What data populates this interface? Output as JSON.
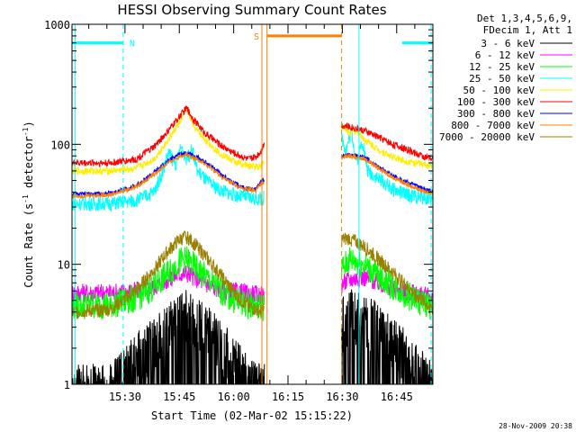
{
  "chart_data": {
    "type": "line",
    "title": "HESSI Observing Summary Count Rates",
    "xlabel": "Start Time (02-Mar-02 15:15:22)",
    "ylabel": "Count Rate (s⁻¹ detector⁻¹)",
    "ylabel_parts": [
      "Count Rate (s",
      "-1",
      " detector",
      "-1",
      ")"
    ],
    "y_scale": "log",
    "ylim": [
      1,
      1000
    ],
    "xlim_minutes": [
      15.37,
      115.0
    ],
    "x_ticks": [
      {
        "label": "15:30",
        "minutes": 30
      },
      {
        "label": "15:45",
        "minutes": 45
      },
      {
        "label": "16:00",
        "minutes": 60
      },
      {
        "label": "16:15",
        "minutes": 75
      },
      {
        "label": "16:30",
        "minutes": 90
      },
      {
        "label": "16:45",
        "minutes": 105
      }
    ],
    "y_ticks": [
      {
        "label": "1",
        "value": 1
      },
      {
        "label": "10",
        "value": 10
      },
      {
        "label": "100",
        "value": 100
      },
      {
        "label": "1000",
        "value": 1000
      }
    ],
    "legend_header": [
      "Det 1,3,4,5,6,9,",
      "FDecim 1, Att 1"
    ],
    "legend_position": "right",
    "timestamp": "28-Nov-2009 20:38",
    "data_gap_minutes": [
      68.5,
      89.8
    ],
    "series": [
      {
        "name": "3 - 6 keV",
        "color": "#000000",
        "x": [
          15.4,
          26,
          33,
          38,
          42,
          45,
          47,
          50,
          54,
          58,
          62,
          66,
          68,
          89.8,
          92,
          96,
          100,
          104,
          108,
          112,
          115
        ],
        "values": [
          1,
          1,
          1.8,
          2.5,
          3.2,
          3.8,
          4.2,
          3.5,
          2.8,
          2.0,
          1.4,
          1,
          1,
          3.5,
          4.2,
          4.0,
          3.2,
          2.5,
          1.8,
          1.3,
          1
        ]
      },
      {
        "name": "6 - 12 keV",
        "color": "#ff00ff",
        "x": [
          15.4,
          26,
          33,
          38,
          42,
          45,
          47,
          50,
          54,
          58,
          62,
          66,
          68,
          89.8,
          92,
          96,
          100,
          104,
          108,
          112,
          115
        ],
        "values": [
          5.8,
          5.8,
          6.0,
          6.5,
          7.5,
          8.3,
          8.5,
          7.5,
          6.5,
          6.0,
          5.8,
          5.6,
          5.5,
          6.8,
          7.5,
          7.8,
          7.0,
          6.3,
          5.8,
          5.5,
          5.3
        ]
      },
      {
        "name": "12 - 25 keV",
        "color": "#00ff00",
        "x": [
          15.4,
          26,
          33,
          38,
          42,
          45,
          47,
          50,
          54,
          58,
          62,
          66,
          68,
          89.8,
          92,
          96,
          100,
          104,
          108,
          112,
          115
        ],
        "values": [
          4.5,
          4.6,
          5.2,
          6.5,
          8.5,
          10.5,
          11.0,
          9.0,
          7.0,
          5.5,
          4.8,
          4.5,
          4.4,
          9.0,
          11.0,
          10.0,
          8.0,
          6.5,
          5.5,
          4.8,
          4.5
        ]
      },
      {
        "name": "25 - 50 keV",
        "color": "#00ffff",
        "x": [
          15.4,
          26,
          33,
          38,
          40,
          42,
          44,
          45.5,
          47,
          48.5,
          50,
          53,
          56,
          60,
          64,
          67,
          68,
          89.8,
          91,
          92.5,
          94,
          95.5,
          97,
          100,
          104,
          108,
          112,
          115
        ],
        "values": [
          32,
          32,
          34,
          40,
          55,
          85,
          68,
          95,
          75,
          90,
          60,
          48,
          42,
          38,
          36,
          35,
          35,
          115,
          90,
          130,
          70,
          110,
          60,
          52,
          42,
          38,
          36,
          35
        ]
      },
      {
        "name": "50 - 100 keV",
        "color": "#ffee00",
        "x": [
          15.4,
          26,
          33,
          38,
          42,
          45,
          47,
          49,
          52,
          56,
          60,
          64,
          67,
          68,
          89.8,
          92,
          94,
          96,
          100,
          104,
          108,
          112,
          115
        ],
        "values": [
          60,
          60,
          63,
          75,
          110,
          150,
          200,
          140,
          110,
          85,
          72,
          66,
          65,
          70,
          140,
          125,
          130,
          110,
          90,
          78,
          72,
          68,
          66
        ]
      },
      {
        "name": "100 - 300 keV",
        "color": "#ff0000",
        "x": [
          15.4,
          26,
          33,
          38,
          42,
          45,
          47,
          49,
          52,
          56,
          60,
          64,
          66,
          67.5,
          68.5,
          89.8,
          92,
          96,
          100,
          104,
          108,
          112,
          115
        ],
        "values": [
          70,
          70,
          75,
          95,
          130,
          170,
          200,
          160,
          125,
          100,
          85,
          75,
          78,
          88,
          102,
          145,
          140,
          130,
          115,
          100,
          90,
          80,
          75
        ]
      },
      {
        "name": "300 - 800 keV",
        "color": "#0000ff",
        "x": [
          15.4,
          26,
          33,
          38,
          42,
          45,
          47,
          50,
          54,
          58,
          62,
          66,
          68,
          89.8,
          92,
          96,
          100,
          104,
          108,
          112,
          115
        ],
        "values": [
          38,
          39,
          45,
          58,
          73,
          83,
          85,
          78,
          65,
          52,
          44,
          42,
          50,
          80,
          82,
          78,
          65,
          55,
          48,
          43,
          40
        ]
      },
      {
        "name": "800 - 7000 keV",
        "color": "#ff8000",
        "x": [
          15.4,
          26,
          33,
          38,
          42,
          45,
          47,
          50,
          54,
          58,
          62,
          66,
          68,
          89.8,
          92,
          96,
          100,
          104,
          108,
          112,
          115
        ],
        "values": [
          37,
          38,
          44,
          56,
          70,
          80,
          82,
          75,
          62,
          50,
          43,
          41,
          48,
          78,
          80,
          76,
          63,
          53,
          46,
          41,
          39
        ]
      },
      {
        "name": "7000 - 20000 keV",
        "color": "#998000",
        "x": [
          15.4,
          26,
          33,
          38,
          42,
          45,
          47,
          50,
          54,
          58,
          62,
          66,
          68,
          89.8,
          92,
          96,
          100,
          104,
          108,
          112,
          115
        ],
        "values": [
          4.0,
          4.2,
          6.0,
          9.0,
          13.0,
          16.0,
          17.0,
          14.0,
          10.0,
          7.0,
          5.0,
          4.2,
          4.0,
          16.0,
          16.5,
          14.0,
          11.0,
          8.5,
          6.5,
          5.0,
          4.2
        ]
      }
    ],
    "annotations": [
      {
        "label": "N",
        "color": "#00ffff",
        "level": 700,
        "segments": [
          [
            15.4,
            29.5
          ],
          [
            106.5,
            115
          ]
        ],
        "dashed_lines": [
          29.5,
          114.5
        ],
        "solid_lines": [
          16.2,
          94.6
        ]
      },
      {
        "label": "S",
        "color": "#ff8000",
        "level": 800,
        "segments": [
          [
            69.2,
            89.8
          ]
        ],
        "dashed_lines": [
          89.8
        ],
        "solid_lines": [
          67.8,
          69.2
        ]
      }
    ]
  }
}
